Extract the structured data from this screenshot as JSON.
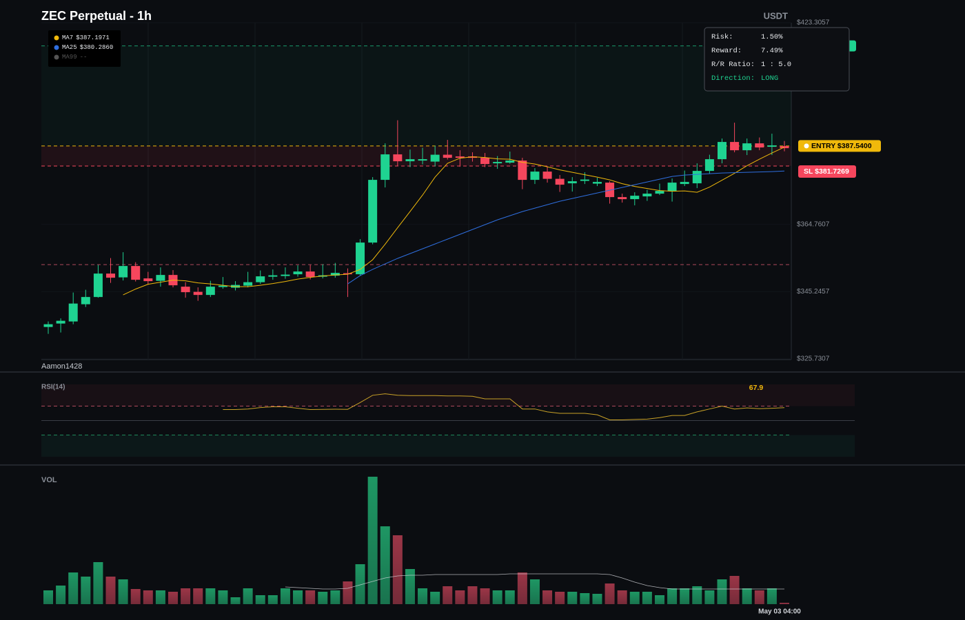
{
  "chart_data": {
    "type": "candlestick",
    "title": "ZEC Perpetual - 1h",
    "quote": "USDT",
    "watermark": "Aamon1428",
    "x_label": "May 03 04:00",
    "up_color": "#1fd391",
    "down_color": "#f6465d",
    "ylim": [
      325.7307,
      423.3057
    ],
    "yticks": [
      {
        "value": 423.3057,
        "label": "$423.3057"
      },
      {
        "value": 364.7607,
        "label": "$364.7607"
      },
      {
        "value": 345.2457,
        "label": "$345.2457"
      },
      {
        "value": 325.7307,
        "label": "$325.7307"
      }
    ],
    "open": [
      335.0,
      336.0,
      336.6,
      341.6,
      343.7,
      350.5,
      349.4,
      352.7,
      349.1,
      348.4,
      350.1,
      346.7,
      345.2,
      344.3,
      346.6,
      346.4,
      347.0,
      348.0,
      349.6,
      349.8,
      350.3,
      351.1,
      349.6,
      349.9,
      350.6,
      350.3,
      359.5,
      377.7,
      385.1,
      383.1,
      383.3,
      383.0,
      385.0,
      384.5,
      384.5,
      384.1,
      382.5,
      382.7,
      383.3,
      377.7,
      380.1,
      378.0,
      376.7,
      377.4,
      376.6,
      376.9,
      372.7,
      372.1,
      372.9,
      373.7,
      374.5,
      376.5,
      376.7,
      380.3,
      383.7,
      388.7,
      386.3,
      388.3,
      387.3,
      387.5
    ],
    "high": [
      336.6,
      337.5,
      345.0,
      345.8,
      353.0,
      355.0,
      356.7,
      353.8,
      351.0,
      352.3,
      351.5,
      348.0,
      346.5,
      348.4,
      349.5,
      348.3,
      351.0,
      351.4,
      351.7,
      352.3,
      352.9,
      353.0,
      353.2,
      353.6,
      352.0,
      360.5,
      378.5,
      388.3,
      395.0,
      386.5,
      387.0,
      387.6,
      389.3,
      386.3,
      385.7,
      385.5,
      384.6,
      385.9,
      384.1,
      381.1,
      381.6,
      379.1,
      378.5,
      379.9,
      378.3,
      377.3,
      373.7,
      374.1,
      374.8,
      376.6,
      378.1,
      380.4,
      382.5,
      385.0,
      389.7,
      394.3,
      389.7,
      390.0,
      391.1,
      389.0
    ],
    "low": [
      333.0,
      333.4,
      335.8,
      340.8,
      343.5,
      347.8,
      348.5,
      348.2,
      347.3,
      346.7,
      346.5,
      343.5,
      342.6,
      343.7,
      346.1,
      345.6,
      346.5,
      347.5,
      348.7,
      349.0,
      349.6,
      348.8,
      349.1,
      349.3,
      343.7,
      349.8,
      359.0,
      375.5,
      381.7,
      381.4,
      382.2,
      381.6,
      383.6,
      381.5,
      383.0,
      381.4,
      380.9,
      382.4,
      375.0,
      376.5,
      376.9,
      374.2,
      374.3,
      376.5,
      375.9,
      370.8,
      371.1,
      370.3,
      371.6,
      373.3,
      371.4,
      375.9,
      375.3,
      379.5,
      382.5,
      385.7,
      384.9,
      386.3,
      384.9,
      386.0
    ],
    "close": [
      335.8,
      336.8,
      341.8,
      343.7,
      350.5,
      349.3,
      352.7,
      348.7,
      348.3,
      350.1,
      347.1,
      345.1,
      344.3,
      346.7,
      347.0,
      347.2,
      348.0,
      349.7,
      350.0,
      350.2,
      351.1,
      349.5,
      350.0,
      350.7,
      350.3,
      359.5,
      377.7,
      385.1,
      383.1,
      383.7,
      383.7,
      385.0,
      384.1,
      384.1,
      384.1,
      382.3,
      382.9,
      383.3,
      377.7,
      380.1,
      378.0,
      376.3,
      377.3,
      377.8,
      377.1,
      372.7,
      372.1,
      373.1,
      373.7,
      374.5,
      376.9,
      377.1,
      380.3,
      383.7,
      388.7,
      386.3,
      388.3,
      387.1,
      387.7,
      386.9
    ],
    "ma": [
      {
        "name": "MA7",
        "last_label": "$387.1971",
        "color": "#f0b90b",
        "values": [
          null,
          null,
          null,
          null,
          null,
          null,
          344.3,
          346,
          347.4,
          348,
          348.6,
          348.4,
          347.8,
          347.5,
          347.1,
          346.7,
          346.7,
          347.1,
          347.6,
          348.2,
          348.9,
          349.4,
          349.8,
          350.1,
          350.3,
          351.7,
          354.5,
          359,
          363.8,
          368.5,
          373.3,
          378.5,
          382.5,
          384,
          384.4,
          384.2,
          383.8,
          383.7,
          382.8,
          382.3,
          381.5,
          380.6,
          379.9,
          379.2,
          378.5,
          377.7,
          376.6,
          375.8,
          375.2,
          374.6,
          374.4,
          374.5,
          374.1,
          375.6,
          377.6,
          379.6,
          381.8,
          383.7,
          385.5,
          387.1971
        ]
      },
      {
        "name": "MA25",
        "last_label": "$380.2860",
        "color": "#2f6fe0",
        "values": [
          null,
          null,
          null,
          null,
          null,
          null,
          null,
          null,
          null,
          null,
          null,
          null,
          null,
          null,
          null,
          null,
          null,
          null,
          null,
          null,
          null,
          null,
          null,
          null,
          347.5,
          349.9,
          351.7,
          353.3,
          354.9,
          356.3,
          357.7,
          359.1,
          360.5,
          361.9,
          363.3,
          364.7,
          366.1,
          367.3,
          368.5,
          369.5,
          370.5,
          371.5,
          372.3,
          373.1,
          373.9,
          374.7,
          375.5,
          376.3,
          377.1,
          377.9,
          378.7,
          379.1,
          379.3,
          379.5,
          379.7,
          379.8,
          379.9,
          380.0,
          380.1,
          380.286
        ]
      },
      {
        "name": "MA99",
        "last_label": "--",
        "color": "#555555",
        "values": []
      }
    ],
    "take_profit": {
      "value": 416.57,
      "color": "#1fd391"
    },
    "entry": {
      "label": "ENTRY $387.5400",
      "value": 387.54,
      "color": "#f0b90b"
    },
    "stop_loss": {
      "label": "SL $381.7269",
      "value": 381.7269,
      "color": "#f6465d"
    },
    "level": {
      "value": 353.1,
      "color": "#b04a5c"
    },
    "info": [
      {
        "label": "Risk:",
        "value": "1.50%"
      },
      {
        "label": "Reward:",
        "value": "7.49%"
      },
      {
        "label": "R/R Ratio:",
        "value": "1 : 5.0"
      },
      {
        "label": "Direction:",
        "value": "LONG"
      }
    ],
    "rsi": {
      "title": "RSI(14)",
      "ylim": [
        0,
        100
      ],
      "upper": 70,
      "middle": 50,
      "lower": 30,
      "color": "#c9a227",
      "values": [
        null,
        null,
        null,
        null,
        null,
        null,
        null,
        null,
        null,
        null,
        null,
        null,
        null,
        null,
        65.2,
        65.2,
        66,
        68,
        69,
        69,
        67,
        65.2,
        65.5,
        65.7,
        65.5,
        75,
        85,
        87,
        85,
        84.5,
        84.5,
        84.5,
        84,
        84,
        83.5,
        80,
        80,
        80,
        66,
        66,
        62,
        60,
        60,
        60,
        58,
        51,
        51,
        51.5,
        52,
        54,
        57,
        57,
        62,
        66,
        70,
        66,
        67.5,
        66.5,
        67,
        67.9
      ]
    },
    "volume": {
      "title": "VOL",
      "ylim": [
        0,
        190
      ],
      "values": [
        20,
        27,
        46,
        40,
        61,
        40,
        36,
        22,
        20,
        20,
        18,
        23,
        23,
        23,
        20,
        10,
        23,
        13,
        13,
        23,
        20,
        20,
        18,
        20,
        33,
        58,
        185,
        113,
        100,
        51,
        23,
        18,
        26,
        20,
        26,
        23,
        20,
        20,
        46,
        36,
        20,
        18,
        18,
        16,
        15,
        30,
        20,
        18,
        18,
        13,
        23,
        23,
        26,
        20,
        36,
        41,
        23,
        20,
        23,
        2
      ],
      "ma": [
        null,
        null,
        null,
        null,
        null,
        null,
        null,
        null,
        null,
        null,
        null,
        null,
        null,
        null,
        null,
        null,
        null,
        null,
        null,
        25,
        24,
        23,
        22,
        22,
        23,
        28,
        33,
        38,
        41,
        42,
        42,
        43,
        43,
        43,
        43,
        43,
        43,
        44,
        44,
        44,
        44,
        44,
        44,
        44,
        44,
        43,
        38,
        32,
        27,
        24,
        22,
        22,
        22,
        22,
        22,
        22,
        22,
        22,
        22,
        22
      ]
    }
  }
}
